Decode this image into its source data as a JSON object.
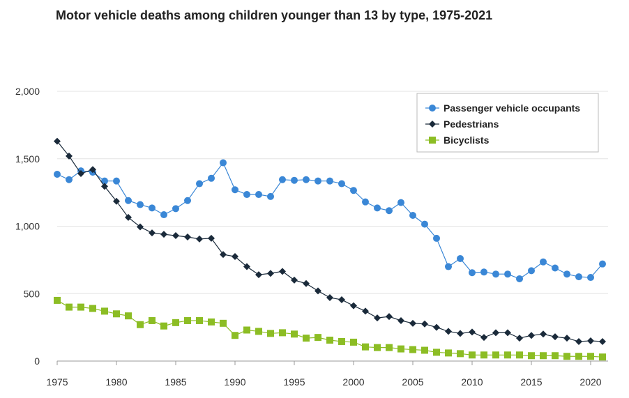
{
  "chart_data": {
    "type": "line",
    "title": "Motor vehicle deaths among children younger than 13 by type, 1975-2021",
    "xlabel": "",
    "ylabel": "",
    "xlim": [
      1975,
      2021
    ],
    "ylim": [
      0,
      2000
    ],
    "x_ticks": [
      1975,
      1980,
      1985,
      1990,
      1995,
      2000,
      2005,
      2010,
      2015,
      2020
    ],
    "y_ticks": [
      0,
      500,
      1000,
      1500,
      2000
    ],
    "y_tick_labels": [
      "0",
      "500",
      "1,000",
      "1,500",
      "2,000"
    ],
    "grid": "horizontal",
    "legend_position": "top-right",
    "x": [
      1975,
      1976,
      1977,
      1978,
      1979,
      1980,
      1981,
      1982,
      1983,
      1984,
      1985,
      1986,
      1987,
      1988,
      1989,
      1990,
      1991,
      1992,
      1993,
      1994,
      1995,
      1996,
      1997,
      1998,
      1999,
      2000,
      2001,
      2002,
      2003,
      2004,
      2005,
      2006,
      2007,
      2008,
      2009,
      2010,
      2011,
      2012,
      2013,
      2014,
      2015,
      2016,
      2017,
      2018,
      2019,
      2020,
      2021
    ],
    "series": [
      {
        "name": "Passenger vehicle occupants",
        "color": "#3a87d6",
        "marker": "circle",
        "values": [
          1385,
          1345,
          1410,
          1400,
          1335,
          1335,
          1190,
          1160,
          1135,
          1085,
          1130,
          1190,
          1315,
          1355,
          1470,
          1270,
          1235,
          1235,
          1220,
          1345,
          1340,
          1345,
          1335,
          1335,
          1315,
          1265,
          1180,
          1135,
          1115,
          1175,
          1080,
          1015,
          910,
          700,
          760,
          655,
          660,
          645,
          645,
          610,
          670,
          735,
          690,
          645,
          625,
          620,
          720
        ]
      },
      {
        "name": "Pedestrians",
        "color": "#1a2a3a",
        "marker": "diamond",
        "values": [
          1630,
          1520,
          1390,
          1420,
          1295,
          1185,
          1065,
          995,
          950,
          940,
          930,
          920,
          905,
          910,
          790,
          775,
          700,
          640,
          650,
          665,
          600,
          575,
          520,
          470,
          455,
          410,
          370,
          320,
          330,
          300,
          280,
          275,
          250,
          220,
          205,
          215,
          175,
          210,
          210,
          170,
          190,
          200,
          180,
          170,
          145,
          150,
          145
        ]
      },
      {
        "name": "Bicyclists",
        "color": "#8cbd24",
        "marker": "square",
        "values": [
          450,
          400,
          400,
          390,
          370,
          350,
          335,
          270,
          300,
          260,
          285,
          300,
          300,
          290,
          280,
          190,
          230,
          220,
          205,
          210,
          200,
          170,
          175,
          155,
          145,
          140,
          105,
          100,
          100,
          90,
          85,
          80,
          65,
          60,
          55,
          45,
          45,
          45,
          45,
          45,
          40,
          40,
          40,
          35,
          35,
          35,
          30
        ]
      }
    ]
  }
}
